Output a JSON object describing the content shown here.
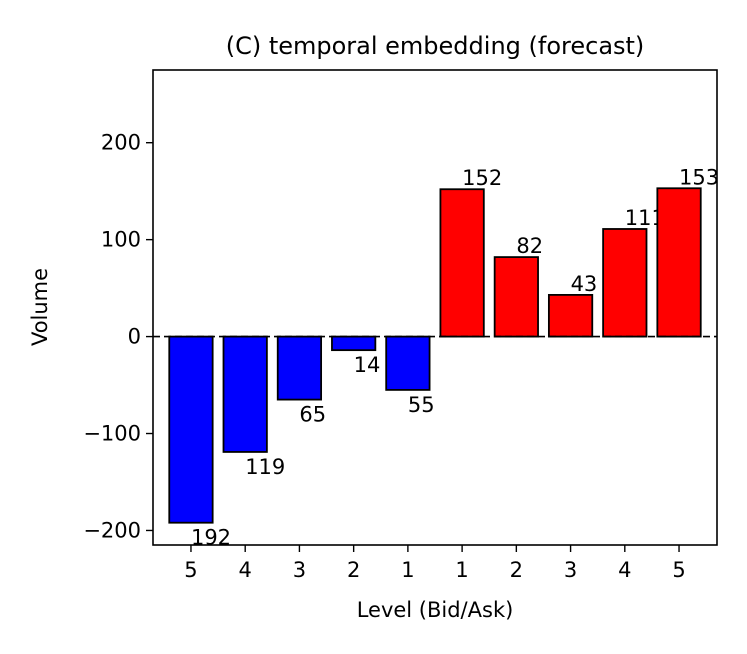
{
  "chart_data": {
    "type": "bar",
    "title": "(C) temporal embedding (forecast)",
    "xlabel": "Level (Bid/Ask)",
    "ylabel": "Volume",
    "categories": [
      "5",
      "4",
      "3",
      "2",
      "1",
      "1",
      "2",
      "3",
      "4",
      "5"
    ],
    "sides": [
      "bid",
      "bid",
      "bid",
      "bid",
      "bid",
      "ask",
      "ask",
      "ask",
      "ask",
      "ask"
    ],
    "values": [
      -192,
      -119,
      -65,
      -14,
      -55,
      152,
      82,
      43,
      111,
      153
    ],
    "data_labels": [
      "192",
      "119",
      "65",
      "14",
      "55",
      "152",
      "82",
      "43",
      "111",
      "153"
    ],
    "ylim": [
      -215,
      275
    ],
    "yticks": [
      -200,
      -100,
      0,
      100,
      200
    ],
    "ytick_labels": [
      "−200",
      "−100",
      "0",
      "100",
      "200"
    ],
    "zero_line": "dashed",
    "colors": {
      "bid": "#0000ff",
      "ask": "#ff0000",
      "edge": "#000000"
    }
  }
}
